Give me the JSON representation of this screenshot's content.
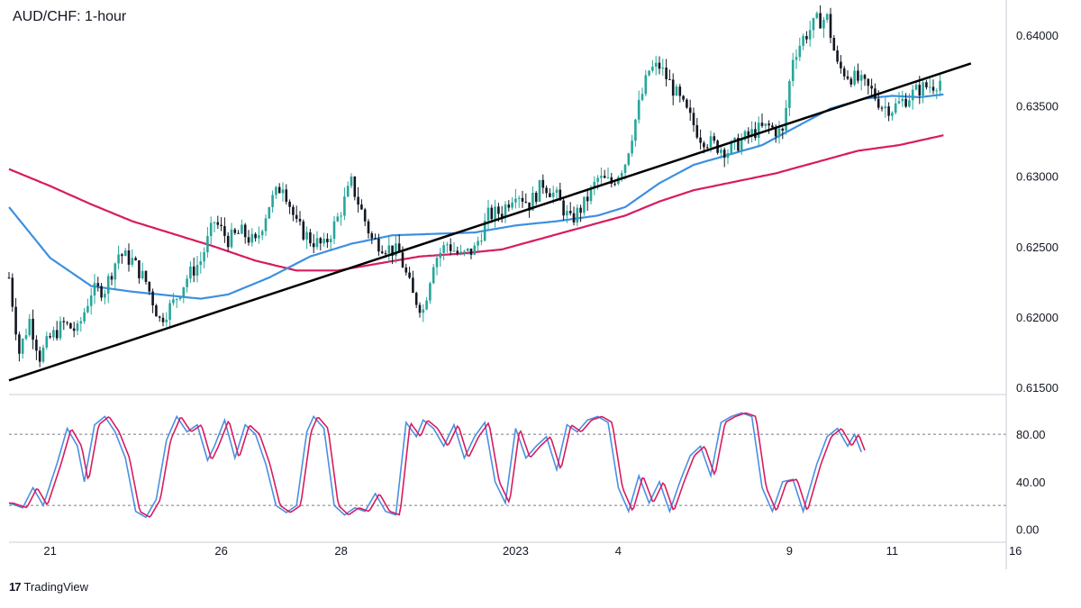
{
  "header": {
    "title": "AUD/CHF: 1-hour"
  },
  "brand": {
    "logo_text": "17",
    "name": "TradingView"
  },
  "colors": {
    "up_candle": "#26a69a",
    "down_candle": "#131722",
    "ma_fast": "#3d8fe0",
    "ma_slow": "#d81b60",
    "trendline": "#000000",
    "stoch_k": "#4a90e2",
    "stoch_d": "#d81b60",
    "grid": "#e0e3eb",
    "axis_text": "#131722"
  },
  "chart_data": [
    {
      "type": "candlestick",
      "title": "AUD/CHF: 1-hour",
      "ylim": [
        0.6145,
        0.6425
      ],
      "yticks": [
        "0.64000",
        "0.63500",
        "0.63000",
        "0.62500",
        "0.62000",
        "0.61500"
      ],
      "ytick_values": [
        0.64,
        0.635,
        0.63,
        0.625,
        0.62,
        0.615
      ],
      "x_labels": [
        "21",
        "26",
        "28",
        "2023",
        "4",
        "9",
        "11",
        "16"
      ],
      "x_label_index": [
        12,
        62,
        97,
        148,
        178,
        228,
        258,
        294
      ],
      "close_path": [
        [
          0,
          0.6228
        ],
        [
          3,
          0.6175
        ],
        [
          6,
          0.6198
        ],
        [
          9,
          0.6172
        ],
        [
          12,
          0.6185
        ],
        [
          16,
          0.6195
        ],
        [
          20,
          0.619
        ],
        [
          24,
          0.6218
        ],
        [
          28,
          0.622
        ],
        [
          32,
          0.6245
        ],
        [
          36,
          0.624
        ],
        [
          40,
          0.6225
        ],
        [
          44,
          0.6198
        ],
        [
          48,
          0.621
        ],
        [
          52,
          0.6228
        ],
        [
          56,
          0.624
        ],
        [
          60,
          0.6268
        ],
        [
          64,
          0.6255
        ],
        [
          68,
          0.626
        ],
        [
          72,
          0.6252
        ],
        [
          76,
          0.628
        ],
        [
          80,
          0.6295
        ],
        [
          84,
          0.6265
        ],
        [
          88,
          0.6255
        ],
        [
          92,
          0.625
        ],
        [
          96,
          0.627
        ],
        [
          100,
          0.6295
        ],
        [
          103,
          0.6275
        ],
        [
          106,
          0.6255
        ],
        [
          110,
          0.625
        ],
        [
          114,
          0.6245
        ],
        [
          118,
          0.6215
        ],
        [
          121,
          0.6205
        ],
        [
          124,
          0.624
        ],
        [
          128,
          0.6252
        ],
        [
          132,
          0.6243
        ],
        [
          136,
          0.6248
        ],
        [
          140,
          0.6272
        ],
        [
          144,
          0.6275
        ],
        [
          148,
          0.629
        ],
        [
          152,
          0.628
        ],
        [
          156,
          0.6295
        ],
        [
          160,
          0.6285
        ],
        [
          164,
          0.6268
        ],
        [
          168,
          0.628
        ],
        [
          172,
          0.6298
        ],
        [
          176,
          0.6295
        ],
        [
          180,
          0.631
        ],
        [
          184,
          0.635
        ],
        [
          187,
          0.6375
        ],
        [
          190,
          0.6378
        ],
        [
          194,
          0.6362
        ],
        [
          198,
          0.6345
        ],
        [
          202,
          0.6328
        ],
        [
          206,
          0.6322
        ],
        [
          210,
          0.6318
        ],
        [
          214,
          0.6325
        ],
        [
          218,
          0.6332
        ],
        [
          222,
          0.6335
        ],
        [
          226,
          0.633
        ],
        [
          229,
          0.6385
        ],
        [
          232,
          0.6398
        ],
        [
          236,
          0.641
        ],
        [
          239,
          0.6412
        ],
        [
          242,
          0.6378
        ],
        [
          245,
          0.6372
        ],
        [
          248,
          0.6368
        ],
        [
          252,
          0.636
        ],
        [
          255,
          0.635
        ],
        [
          258,
          0.6348
        ],
        [
          262,
          0.6355
        ],
        [
          266,
          0.6362
        ],
        [
          270,
          0.6365
        ],
        [
          272,
          0.6368
        ]
      ],
      "ma_fast": [
        [
          0,
          0.6278
        ],
        [
          12,
          0.6242
        ],
        [
          24,
          0.6222
        ],
        [
          36,
          0.6218
        ],
        [
          48,
          0.6215
        ],
        [
          56,
          0.6213
        ],
        [
          64,
          0.6216
        ],
        [
          76,
          0.6228
        ],
        [
          88,
          0.6243
        ],
        [
          100,
          0.6252
        ],
        [
          112,
          0.6258
        ],
        [
          124,
          0.6259
        ],
        [
          136,
          0.626
        ],
        [
          148,
          0.6265
        ],
        [
          160,
          0.6268
        ],
        [
          172,
          0.6272
        ],
        [
          180,
          0.6278
        ],
        [
          190,
          0.6295
        ],
        [
          200,
          0.6308
        ],
        [
          210,
          0.6315
        ],
        [
          220,
          0.6322
        ],
        [
          230,
          0.6335
        ],
        [
          240,
          0.6348
        ],
        [
          250,
          0.6355
        ],
        [
          258,
          0.6357
        ],
        [
          266,
          0.6356
        ],
        [
          273,
          0.6358
        ]
      ],
      "ma_slow": [
        [
          0,
          0.6305
        ],
        [
          12,
          0.6293
        ],
        [
          24,
          0.628
        ],
        [
          36,
          0.6268
        ],
        [
          48,
          0.6259
        ],
        [
          60,
          0.625
        ],
        [
          72,
          0.624
        ],
        [
          84,
          0.6233
        ],
        [
          96,
          0.6233
        ],
        [
          108,
          0.6238
        ],
        [
          120,
          0.6243
        ],
        [
          132,
          0.6245
        ],
        [
          144,
          0.6248
        ],
        [
          156,
          0.6256
        ],
        [
          168,
          0.6264
        ],
        [
          180,
          0.6272
        ],
        [
          190,
          0.6282
        ],
        [
          200,
          0.629
        ],
        [
          212,
          0.6296
        ],
        [
          224,
          0.6302
        ],
        [
          236,
          0.631
        ],
        [
          248,
          0.6318
        ],
        [
          260,
          0.6322
        ],
        [
          273,
          0.6329
        ]
      ],
      "trendline": [
        [
          0,
          0.6155
        ],
        [
          281,
          0.638
        ]
      ]
    },
    {
      "type": "line",
      "name": "stochastic",
      "ylim": [
        -8,
        112
      ],
      "yticks": [
        "80.00",
        "40.00",
        "0.00"
      ],
      "ytick_values": [
        80,
        40,
        0
      ],
      "dashed_levels": [
        80,
        20
      ],
      "k_path": [
        [
          0,
          22
        ],
        [
          4,
          18
        ],
        [
          7,
          35
        ],
        [
          10,
          20
        ],
        [
          14,
          55
        ],
        [
          17,
          85
        ],
        [
          20,
          70
        ],
        [
          22,
          40
        ],
        [
          25,
          88
        ],
        [
          28,
          95
        ],
        [
          31,
          82
        ],
        [
          34,
          60
        ],
        [
          37,
          15
        ],
        [
          40,
          10
        ],
        [
          43,
          25
        ],
        [
          46,
          75
        ],
        [
          49,
          95
        ],
        [
          52,
          82
        ],
        [
          55,
          88
        ],
        [
          58,
          58
        ],
        [
          60,
          70
        ],
        [
          63,
          92
        ],
        [
          66,
          60
        ],
        [
          69,
          88
        ],
        [
          72,
          80
        ],
        [
          75,
          55
        ],
        [
          78,
          20
        ],
        [
          81,
          14
        ],
        [
          84,
          20
        ],
        [
          87,
          82
        ],
        [
          89,
          95
        ],
        [
          92,
          85
        ],
        [
          95,
          20
        ],
        [
          98,
          12
        ],
        [
          101,
          18
        ],
        [
          104,
          15
        ],
        [
          107,
          30
        ],
        [
          110,
          15
        ],
        [
          113,
          12
        ],
        [
          116,
          90
        ],
        [
          119,
          78
        ],
        [
          121,
          92
        ],
        [
          124,
          85
        ],
        [
          127,
          70
        ],
        [
          130,
          88
        ],
        [
          133,
          60
        ],
        [
          136,
          78
        ],
        [
          139,
          90
        ],
        [
          142,
          40
        ],
        [
          145,
          22
        ],
        [
          148,
          85
        ],
        [
          151,
          60
        ],
        [
          154,
          70
        ],
        [
          157,
          78
        ],
        [
          160,
          50
        ],
        [
          163,
          88
        ],
        [
          166,
          82
        ],
        [
          169,
          92
        ],
        [
          172,
          95
        ],
        [
          175,
          90
        ],
        [
          178,
          35
        ],
        [
          181,
          15
        ],
        [
          184,
          45
        ],
        [
          187,
          22
        ],
        [
          190,
          40
        ],
        [
          193,
          15
        ],
        [
          196,
          40
        ],
        [
          199,
          62
        ],
        [
          202,
          70
        ],
        [
          205,
          45
        ],
        [
          208,
          90
        ],
        [
          211,
          95
        ],
        [
          214,
          98
        ],
        [
          217,
          95
        ],
        [
          220,
          35
        ],
        [
          223,
          15
        ],
        [
          226,
          40
        ],
        [
          229,
          42
        ],
        [
          232,
          15
        ],
        [
          236,
          55
        ],
        [
          239,
          78
        ],
        [
          242,
          85
        ],
        [
          245,
          70
        ],
        [
          247,
          80
        ],
        [
          249,
          65
        ]
      ]
    }
  ]
}
